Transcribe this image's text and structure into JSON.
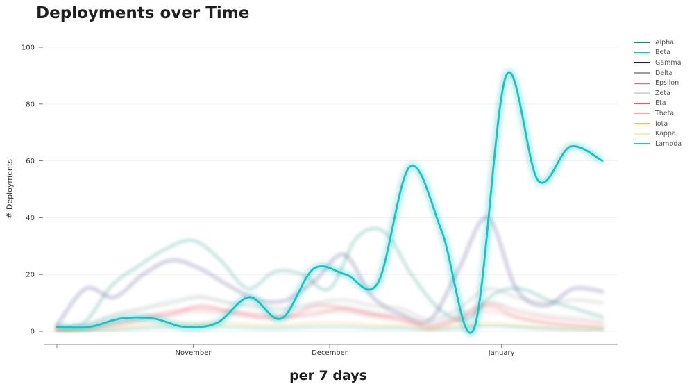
{
  "chart_data": {
    "type": "line",
    "title": "Deployments over Time",
    "xlabel": "per 7 days",
    "ylabel": "# Deployments",
    "ylim": [
      0,
      100
    ],
    "yticks": [
      0,
      20,
      40,
      60,
      80,
      100
    ],
    "xlim": [
      0,
      20
    ],
    "xticks": [
      {
        "label": "November",
        "x": 5
      },
      {
        "label": "December",
        "x": 10
      },
      {
        "label": "January",
        "x": 16.3
      }
    ],
    "grid": true,
    "legend": "right",
    "highlighted_series": "Beta",
    "series": [
      {
        "name": "Alpha",
        "color": "#0e8c7a",
        "values": [
          1.5,
          3,
          16,
          23,
          29,
          32,
          25,
          15,
          21,
          20,
          15,
          33,
          35,
          20,
          8,
          4,
          13,
          15,
          11,
          8,
          5
        ]
      },
      {
        "name": "Beta",
        "color": "#17c3c3",
        "values": [
          1.5,
          1.5,
          4.5,
          4.5,
          1.5,
          3,
          12,
          4.5,
          22,
          20,
          17,
          58,
          35,
          1,
          90,
          53,
          65,
          60
        ]
      },
      {
        "name": "Gamma",
        "color": "#1a1a6e",
        "values": [
          2,
          15,
          12,
          20,
          25,
          22,
          16,
          11,
          11,
          18,
          27,
          12,
          6,
          4,
          22,
          40,
          15,
          9,
          15,
          14
        ]
      },
      {
        "name": "Delta",
        "color": "#9e9e9e",
        "values": [
          1,
          2,
          6,
          8,
          10,
          12,
          10,
          9,
          8,
          10,
          11,
          9,
          8,
          4,
          8,
          15,
          12,
          10,
          11,
          10
        ]
      },
      {
        "name": "Epsilon",
        "color": "#d9727a",
        "values": [
          0.5,
          1,
          3,
          5,
          7,
          8,
          7,
          6,
          5,
          6,
          8,
          6,
          5,
          2,
          5,
          10,
          7,
          5,
          4,
          3
        ]
      },
      {
        "name": "Zeta",
        "color": "#cfd8e0",
        "values": [
          1,
          2,
          5,
          8,
          11,
          12,
          10,
          8,
          7,
          9,
          9,
          7,
          6,
          3,
          6,
          10,
          8,
          6,
          5,
          4
        ]
      },
      {
        "name": "Eta",
        "color": "#e8575f",
        "values": [
          0.5,
          1,
          2,
          4,
          6,
          9,
          7,
          5,
          5,
          9,
          8,
          6,
          4,
          1,
          4,
          9,
          5,
          3,
          2,
          1
        ]
      },
      {
        "name": "Theta",
        "color": "#f0a3a0",
        "values": [
          0.5,
          1,
          3,
          5,
          6,
          7,
          6,
          5,
          5,
          7,
          7,
          5,
          4,
          2,
          5,
          7,
          5,
          3,
          2,
          2
        ]
      },
      {
        "name": "Iota",
        "color": "#e6c35c",
        "values": [
          0.2,
          0.5,
          1,
          2,
          3,
          3,
          3,
          2,
          2,
          3,
          3,
          2,
          2,
          1,
          2,
          3,
          2,
          1,
          1,
          1
        ]
      },
      {
        "name": "Kappa",
        "color": "#f3f0b0",
        "values": [
          0.2,
          0.5,
          1,
          1.5,
          2,
          2.5,
          2,
          2,
          2,
          2.5,
          2.5,
          2,
          1.5,
          1,
          1.5,
          2.5,
          2,
          1.5,
          1,
          1
        ]
      },
      {
        "name": "Lambda",
        "color": "#3fb3c8",
        "values": [
          0.2,
          0.3,
          0.5,
          1,
          1.5,
          2,
          1.5,
          1,
          1,
          1.5,
          1.5,
          1,
          1,
          0.5,
          1,
          2,
          1.5,
          1,
          0.5,
          0.5
        ]
      }
    ]
  }
}
